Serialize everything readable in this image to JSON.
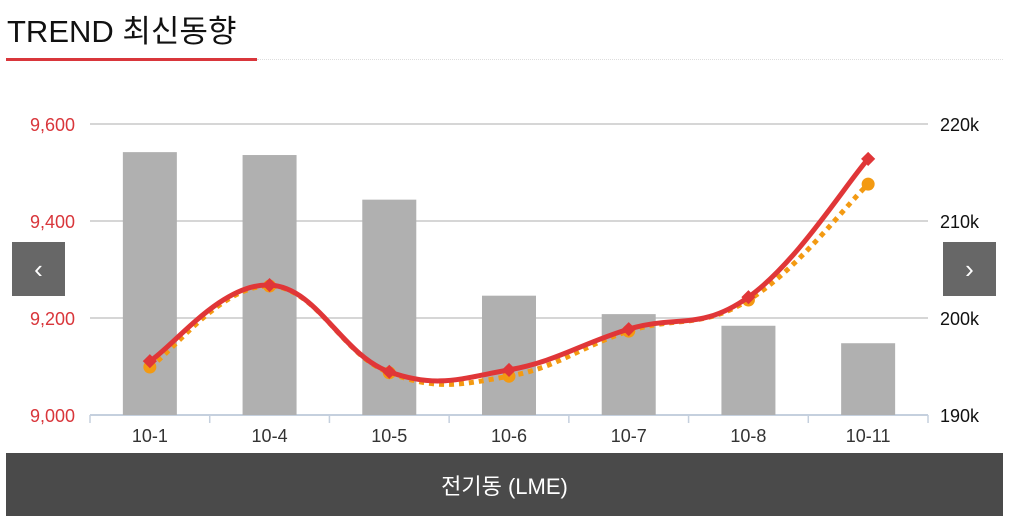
{
  "header": {
    "title": "TREND 최신동향"
  },
  "footer": {
    "label": "전기동 (LME)"
  },
  "nav": {
    "prev_icon": "chevron-left-icon",
    "next_icon": "chevron-right-icon",
    "prev": "‹",
    "next": "›"
  },
  "chart_data": {
    "type": "bar+line",
    "categories": [
      "10-1",
      "10-4",
      "10-5",
      "10-6",
      "10-7",
      "10-8",
      "10-11"
    ],
    "left_axis": {
      "ylim": [
        9000,
        9600
      ],
      "ticks": [
        "9,000",
        "9,200",
        "9,400",
        "9,600"
      ],
      "color": "#d9363b"
    },
    "right_axis": {
      "ylim": [
        190000,
        220000
      ],
      "ticks": [
        "190k",
        "200k",
        "210k",
        "220k"
      ]
    },
    "grid": true,
    "series": [
      {
        "type": "bar",
        "axis": "right",
        "color": "#b0b0b0",
        "values": [
          217100,
          216800,
          212200,
          202300,
          200400,
          199200,
          197400
        ]
      },
      {
        "type": "line",
        "style": "dotted",
        "marker": "circle",
        "axis": "left",
        "color": "#f39a12",
        "values": [
          9099,
          9266,
          9087,
          9080,
          9173,
          9237,
          9476
        ]
      },
      {
        "type": "line",
        "style": "solid",
        "marker": "diamond",
        "axis": "left",
        "color": "#e03638",
        "values": [
          9111,
          9268,
          9089,
          9093,
          9177,
          9243,
          9528
        ]
      }
    ]
  }
}
